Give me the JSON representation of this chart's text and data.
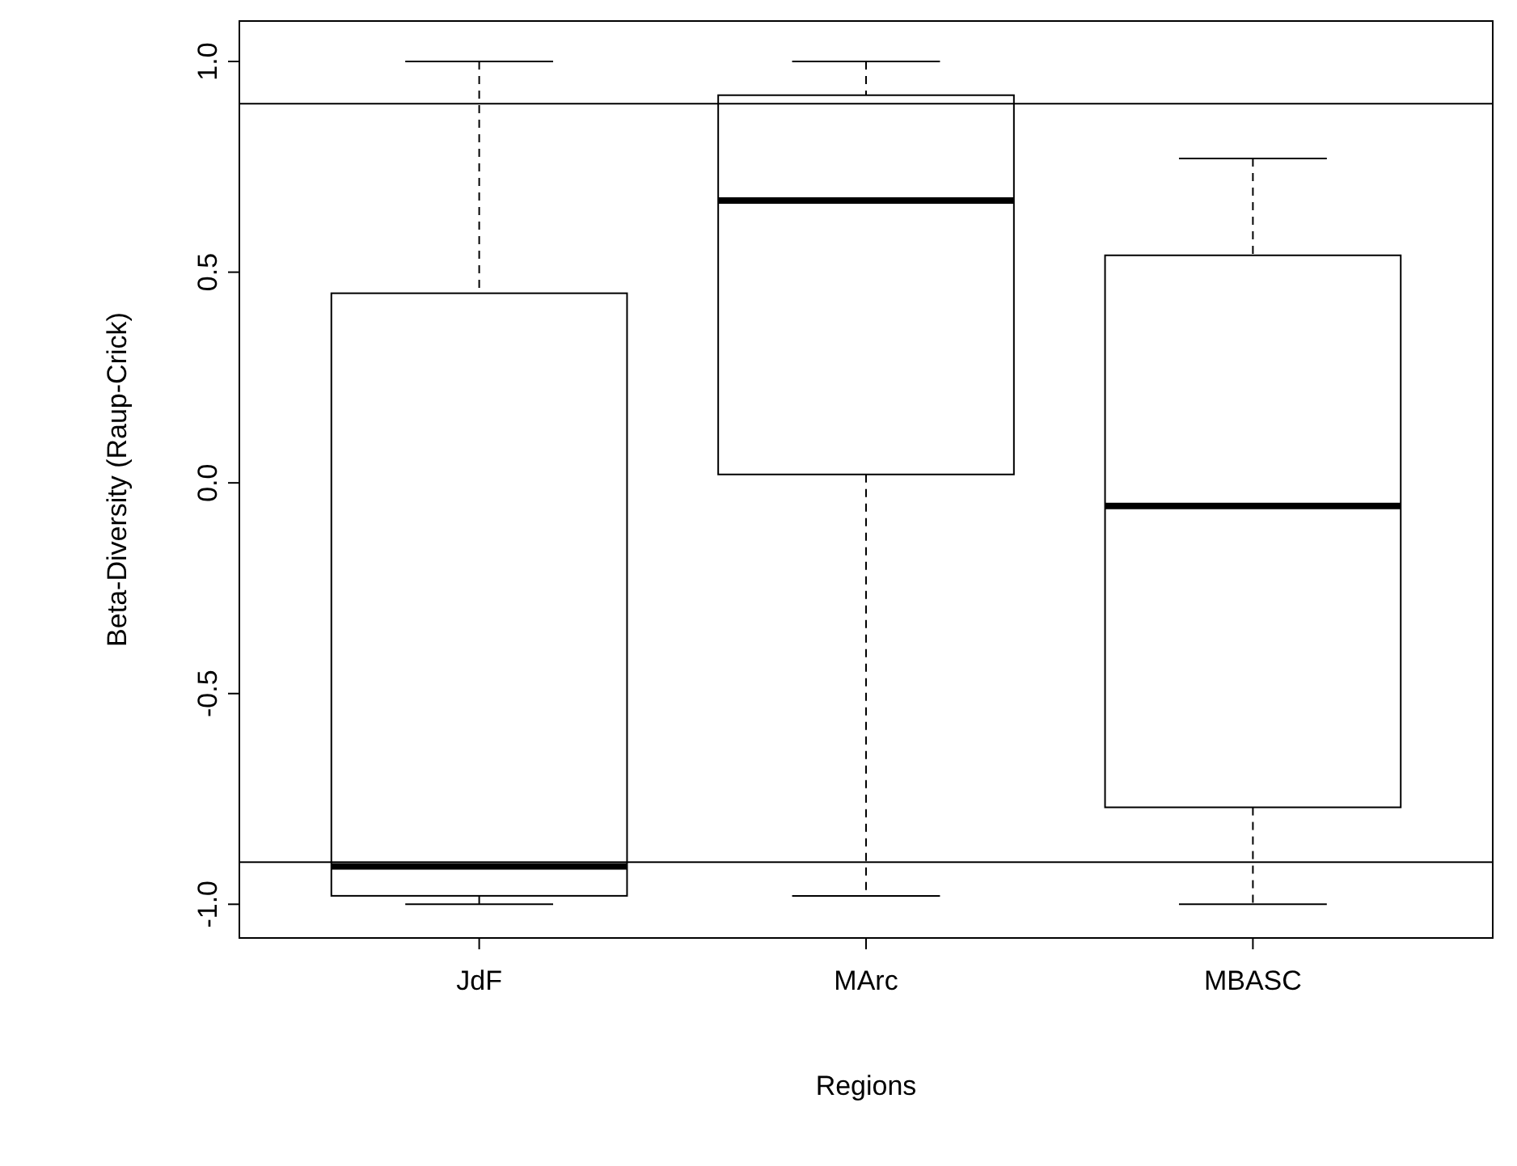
{
  "chart_data": {
    "type": "box",
    "xlabel": "Regions",
    "ylabel": "Beta-Diversity (Raup-Crick)",
    "categories": [
      "JdF",
      "MArc",
      "MBASC"
    ],
    "boxes": [
      {
        "low": -1.0,
        "q1": -0.98,
        "median": -0.91,
        "q3": 0.45,
        "high": 1.0
      },
      {
        "low": -0.98,
        "q1": 0.02,
        "median": 0.67,
        "q3": 0.92,
        "high": 1.0
      },
      {
        "low": -1.0,
        "q1": -0.77,
        "median": -0.055,
        "q3": 0.54,
        "high": 0.77
      }
    ],
    "ylim": [
      -1.08,
      1.096
    ],
    "yticks": [
      {
        "value": -1,
        "label": "-1.0"
      },
      {
        "value": -0.5,
        "label": "-0.5"
      },
      {
        "value": 0,
        "label": "0.0"
      },
      {
        "value": 0.5,
        "label": "0.5"
      },
      {
        "value": 1,
        "label": "1.0"
      }
    ],
    "ref_lines": [
      {
        "axis": "y",
        "value": 0.9,
        "color": "#000000"
      },
      {
        "axis": "y",
        "value": -0.9,
        "color": "#000000"
      }
    ],
    "grid": false
  }
}
